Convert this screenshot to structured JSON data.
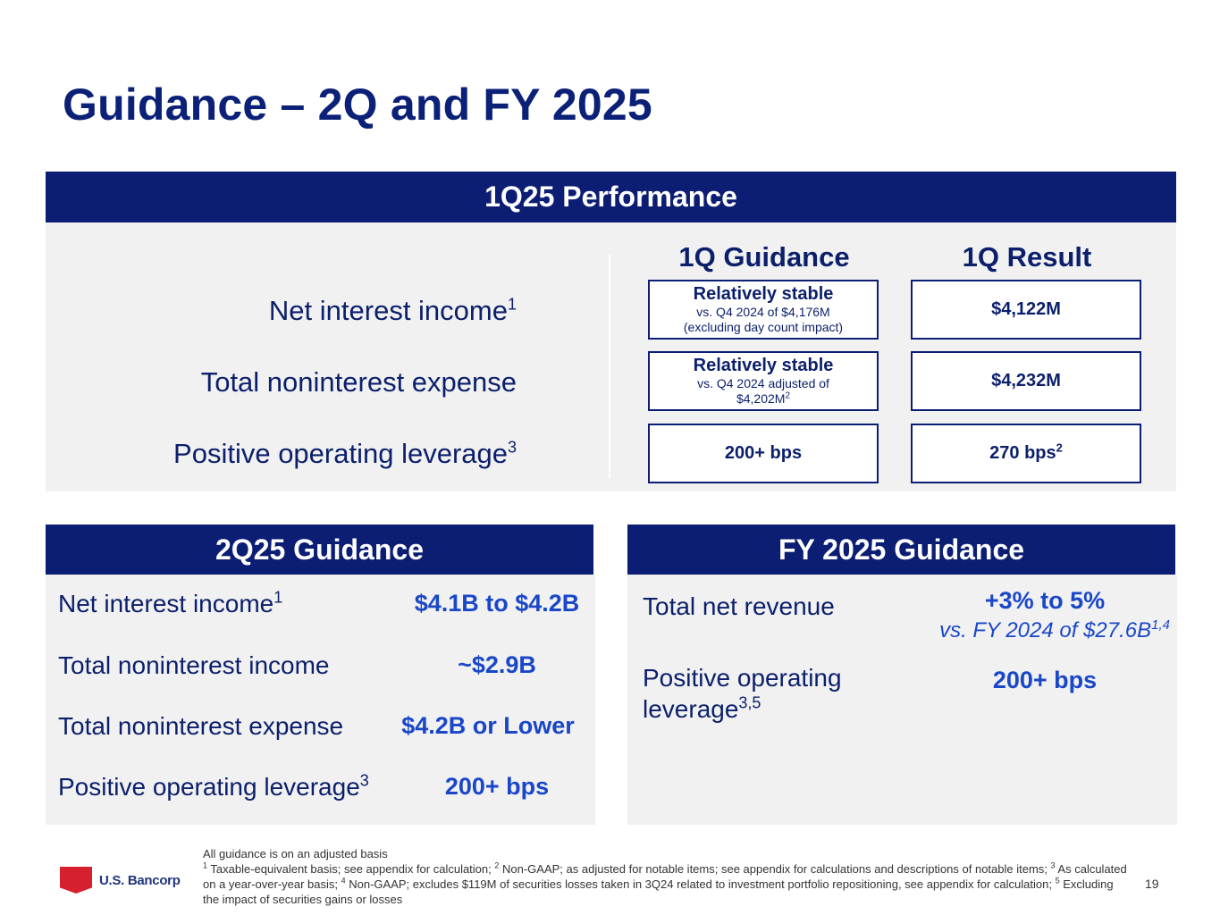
{
  "title": "Guidance – 2Q and FY 2025",
  "performance": {
    "header": "1Q25 Performance",
    "col_guidance": "1Q Guidance",
    "col_result": "1Q Result",
    "rows": [
      {
        "label": "Net interest income",
        "label_sup": "1",
        "guidance_main": "Relatively stable",
        "guidance_sub1": "vs. Q4 2024 of $4,176M",
        "guidance_sub2": "(excluding day count impact)",
        "result": "$4,122M"
      },
      {
        "label": "Total noninterest expense",
        "guidance_main": "Relatively stable",
        "guidance_sub1": "vs. Q4 2024 adjusted of",
        "guidance_sub2": "$4,202M",
        "guidance_sub2_sup": "2",
        "result": "$4,232M"
      },
      {
        "label": "Positive operating leverage",
        "label_sup": "3",
        "guidance_main": "200+ bps",
        "result": "270 bps",
        "result_sup": "2"
      }
    ]
  },
  "q2_guidance": {
    "header": "2Q25 Guidance",
    "rows": [
      {
        "label": "Net interest income",
        "sup": "1",
        "value": "$4.1B to $4.2B"
      },
      {
        "label": "Total noninterest income",
        "value": "~$2.9B"
      },
      {
        "label": "Total noninterest expense",
        "value": "$4.2B or Lower"
      },
      {
        "label": "Positive operating leverage",
        "sup": "3",
        "value": "200+ bps"
      }
    ]
  },
  "fy_guidance": {
    "header": "FY 2025 Guidance",
    "rows": [
      {
        "label": "Total net revenue",
        "value": "+3% to 5%",
        "sub": "vs. FY 2024 of $27.6B",
        "sub_sup": "1,4"
      },
      {
        "label_line1": "Positive operating",
        "label_line2": "leverage",
        "sup": "3,5",
        "value": "200+ bps"
      }
    ]
  },
  "footer": {
    "logo_text": "U.S. Bancorp",
    "note_main": "All guidance is on an adjusted basis",
    "n1": "1",
    "t1": " Taxable-equivalent basis; see appendix for calculation; ",
    "n2": "2",
    "t2": " Non-GAAP; as adjusted for notable items; see appendix for calculations and descriptions of notable items; ",
    "n3": "3",
    "t3": " As calculated on a year-over-year basis; ",
    "n4": "4",
    "t4": " Non-GAAP; excludes $119M of securities losses taken in 3Q24 related to investment portfolio repositioning, see appendix for calculation; ",
    "n5": "5",
    "t5": " Excluding the impact of securities gains or losses",
    "page_number": "19"
  },
  "colors": {
    "navy": "#0c1e73",
    "accent_blue": "#1947c8",
    "panel_gray": "#f1f1f1",
    "logo_red": "#d6202f"
  }
}
